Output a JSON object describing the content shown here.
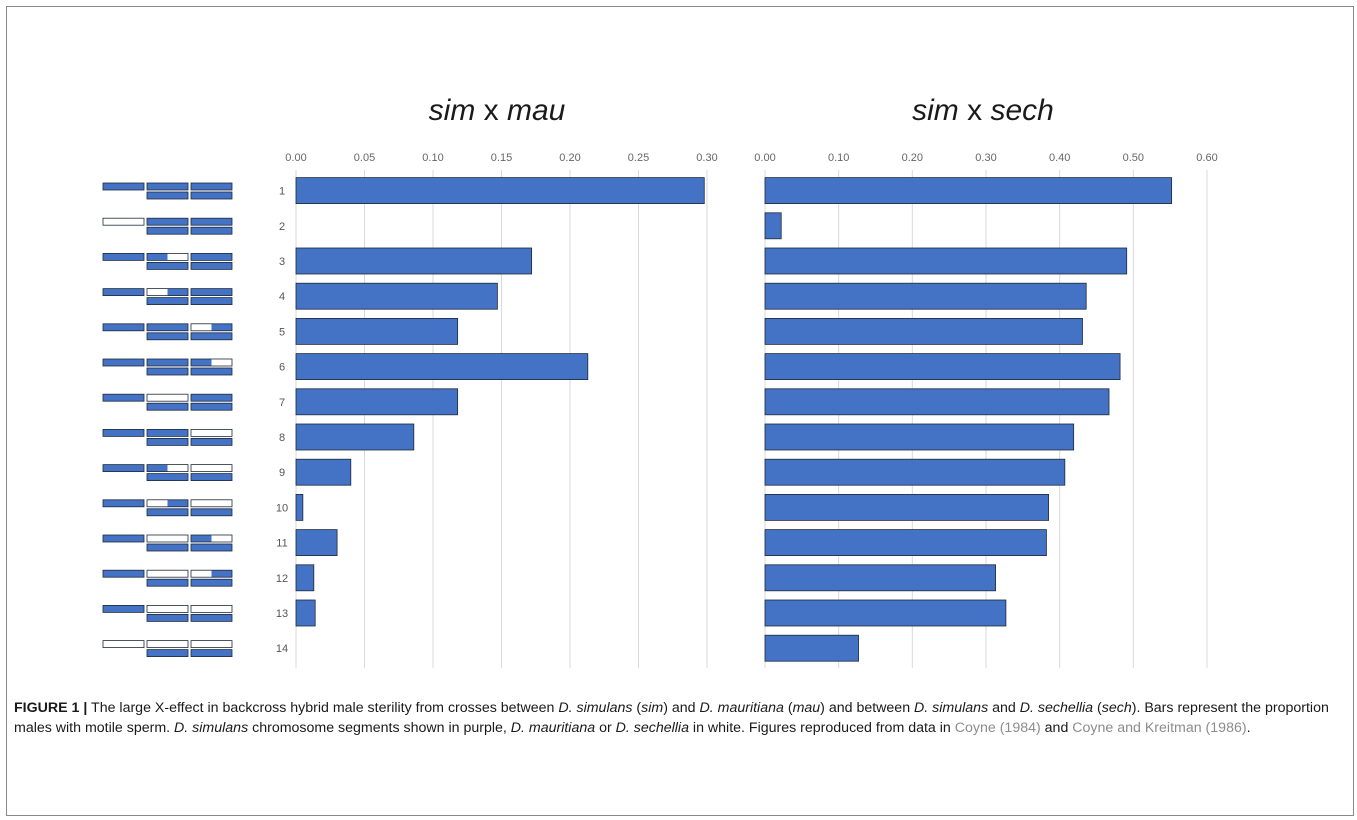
{
  "chart_data": [
    {
      "type": "bar",
      "orientation": "horizontal",
      "title_parts": [
        {
          "text": "sim",
          "italic": true
        },
        {
          "text": " x ",
          "italic": false
        },
        {
          "text": "mau",
          "italic": true
        }
      ],
      "tick_values": [
        0,
        0.05,
        0.1,
        0.15,
        0.2,
        0.25,
        0.3
      ],
      "tick_labels": [
        "0.00",
        "0.05",
        "0.10",
        "0.15",
        "0.20",
        "0.25",
        "0.30"
      ],
      "xlim": [
        0,
        0.3
      ],
      "categories": [
        "1",
        "2",
        "3",
        "4",
        "5",
        "6",
        "7",
        "8",
        "9",
        "10",
        "11",
        "12",
        "13",
        "14"
      ],
      "values": [
        0.298,
        0.0,
        0.172,
        0.147,
        0.118,
        0.213,
        0.118,
        0.086,
        0.04,
        0.005,
        0.03,
        0.013,
        0.014,
        0.0
      ],
      "bar_color": "#4472c4",
      "grid": "vertical"
    },
    {
      "type": "bar",
      "orientation": "horizontal",
      "title_parts": [
        {
          "text": "sim",
          "italic": true
        },
        {
          "text": " x ",
          "italic": false
        },
        {
          "text": "sech",
          "italic": true
        }
      ],
      "tick_values": [
        0,
        0.1,
        0.2,
        0.3,
        0.4,
        0.5,
        0.6
      ],
      "tick_labels": [
        "0.00",
        "0.10",
        "0.20",
        "0.30",
        "0.40",
        "0.50",
        "0.60"
      ],
      "xlim": [
        0,
        0.6
      ],
      "categories": [
        "1",
        "2",
        "3",
        "4",
        "5",
        "6",
        "7",
        "8",
        "9",
        "10",
        "11",
        "12",
        "13",
        "14"
      ],
      "values": [
        0.552,
        0.022,
        0.491,
        0.436,
        0.431,
        0.482,
        0.467,
        0.419,
        0.407,
        0.385,
        0.382,
        0.313,
        0.327,
        0.127
      ],
      "bar_color": "#4472c4",
      "grid": "vertical"
    }
  ],
  "genotype_legend": {
    "simulans_color": "#4472c4",
    "other_color": "#ffffff",
    "rows": [
      {
        "top": [
          [
            1
          ]
        ],
        "x2": [
          [
            1
          ]
        ],
        "x3": [
          [
            1
          ]
        ]
      },
      {
        "top": [
          [
            0
          ]
        ],
        "x2": [
          [
            1
          ]
        ],
        "x3": [
          [
            1
          ]
        ]
      },
      {
        "top": [
          [
            1
          ]
        ],
        "x2": [
          [
            1,
            0.5
          ],
          [
            0,
            0.5
          ]
        ],
        "x3": [
          [
            1
          ]
        ]
      },
      {
        "top": [
          [
            1
          ]
        ],
        "x2": [
          [
            0,
            0.5
          ],
          [
            1,
            0.5
          ]
        ],
        "x3": [
          [
            1
          ]
        ]
      },
      {
        "top": [
          [
            1
          ]
        ],
        "x2": [
          [
            1
          ]
        ],
        "x3": [
          [
            0,
            0.5
          ],
          [
            1,
            0.5
          ]
        ]
      },
      {
        "top": [
          [
            1
          ]
        ],
        "x2": [
          [
            1
          ]
        ],
        "x3": [
          [
            1,
            0.5
          ],
          [
            0,
            0.5
          ]
        ]
      },
      {
        "top": [
          [
            1
          ]
        ],
        "x2": [
          [
            0
          ]
        ],
        "x3": [
          [
            1
          ]
        ]
      },
      {
        "top": [
          [
            1
          ]
        ],
        "x2": [
          [
            1
          ]
        ],
        "x3": [
          [
            0
          ]
        ]
      },
      {
        "top": [
          [
            1
          ]
        ],
        "x2": [
          [
            1,
            0.5
          ],
          [
            0,
            0.5
          ]
        ],
        "x3": [
          [
            0
          ]
        ]
      },
      {
        "top": [
          [
            1
          ]
        ],
        "x2": [
          [
            0,
            0.5
          ],
          [
            1,
            0.5
          ]
        ],
        "x3": [
          [
            0
          ]
        ]
      },
      {
        "top": [
          [
            1
          ]
        ],
        "x2": [
          [
            0
          ]
        ],
        "x3": [
          [
            1,
            0.5
          ],
          [
            0,
            0.5
          ]
        ]
      },
      {
        "top": [
          [
            1
          ]
        ],
        "x2": [
          [
            0
          ]
        ],
        "x3": [
          [
            0,
            0.5
          ],
          [
            1,
            0.5
          ]
        ]
      },
      {
        "top": [
          [
            1
          ]
        ],
        "x2": [
          [
            0
          ]
        ],
        "x3": [
          [
            0
          ]
        ]
      },
      {
        "top": [
          [
            0
          ]
        ],
        "x2": [
          [
            0
          ]
        ],
        "x3": [
          [
            0
          ]
        ]
      }
    ]
  },
  "caption": {
    "label": "FIGURE 1 |",
    "segments": [
      {
        "text": " The large X-effect in backcross hybrid male sterility from crosses between ",
        "style": "normal"
      },
      {
        "text": "D. simulans",
        "style": "italic"
      },
      {
        "text": " (",
        "style": "normal"
      },
      {
        "text": "sim",
        "style": "italic"
      },
      {
        "text": ") and ",
        "style": "normal"
      },
      {
        "text": "D. mauritiana",
        "style": "italic"
      },
      {
        "text": " (",
        "style": "normal"
      },
      {
        "text": "mau",
        "style": "italic"
      },
      {
        "text": ") and between ",
        "style": "normal"
      },
      {
        "text": "D. simulans",
        "style": "italic"
      },
      {
        "text": " and ",
        "style": "normal"
      },
      {
        "text": "D. sechellia",
        "style": "italic"
      },
      {
        "text": " (",
        "style": "normal"
      },
      {
        "text": "sech",
        "style": "italic"
      },
      {
        "text": "). Bars represent the proportion males with motile sperm. ",
        "style": "normal"
      },
      {
        "text": "D. simulans",
        "style": "italic"
      },
      {
        "text": " chromosome segments shown in purple, ",
        "style": "normal"
      },
      {
        "text": "D. mauritiana",
        "style": "italic"
      },
      {
        "text": " or ",
        "style": "normal"
      },
      {
        "text": "D. sechellia",
        "style": "italic"
      },
      {
        "text": " in white. Figures reproduced from data in ",
        "style": "normal"
      },
      {
        "text": "Coyne (1984)",
        "style": "ref"
      },
      {
        "text": " and ",
        "style": "normal"
      },
      {
        "text": "Coyne and Kreitman (1986)",
        "style": "ref"
      },
      {
        "text": ".",
        "style": "normal"
      }
    ]
  }
}
